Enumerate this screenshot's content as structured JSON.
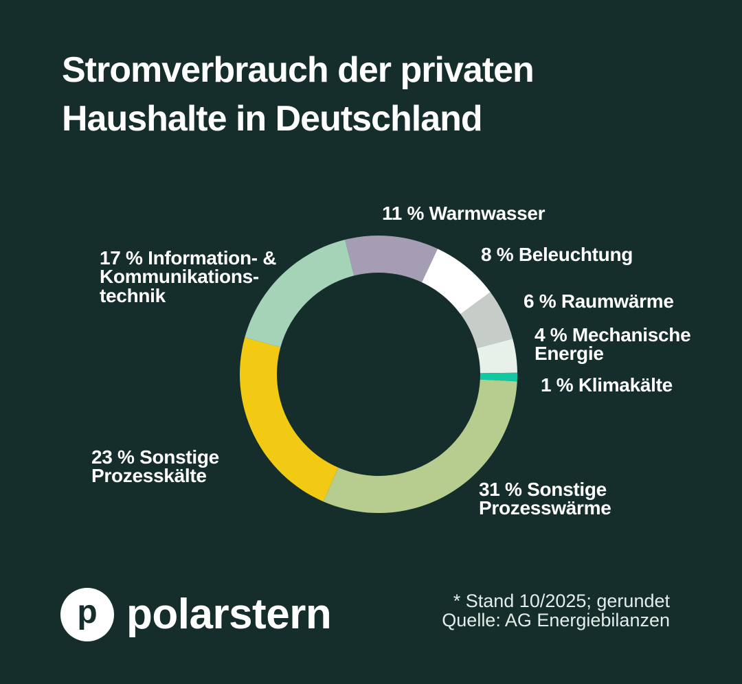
{
  "colors": {
    "background": "#152e2b",
    "text": "#ffffff",
    "footnote_text": "#e4edea"
  },
  "header": {
    "title": "Stromverbrauch der privaten\nHaushalte in Deutschland"
  },
  "chart_data": {
    "type": "pie",
    "variant": "donut",
    "title": "Stromverbrauch der privaten Haushalte in Deutschland",
    "unit": "%",
    "start_angle_deg": -14,
    "direction": "clockwise",
    "labels_position": "around",
    "segments": [
      {
        "slug": "warmwasser",
        "label": "Warmwasser",
        "value": 11,
        "color": "#a59db3",
        "display_label": "11 % Warmwasser"
      },
      {
        "slug": "beleuchtung",
        "label": "Beleuchtung",
        "value": 8,
        "color": "#ffffff",
        "display_label": "8 % Beleuchtung"
      },
      {
        "slug": "raumwaerme",
        "label": "Raumwärme",
        "value": 6,
        "color": "#c6ccc7",
        "display_label": "6 % Raumwärme"
      },
      {
        "slug": "mechanische-energie",
        "label": "Mechanische Energie",
        "value": 4,
        "color": "#e7f0e9",
        "display_label": "4 % Mechanische\nEnergie"
      },
      {
        "slug": "klimakaelte",
        "label": "Klimakälte",
        "value": 1,
        "color": "#12c8a3",
        "display_label": "1 % Klimakälte"
      },
      {
        "slug": "sonstige-prozesswaerme",
        "label": "Sonstige Prozesswärme",
        "value": 31,
        "color": "#b6cd8f",
        "display_label": "31 % Sonstige\nProzesswärme"
      },
      {
        "slug": "sonstige-prozesskaelte",
        "label": "Sonstige Prozesskälte",
        "value": 23,
        "color": "#f2ca14",
        "display_label": "23 % Sonstige\nProzesskälte"
      },
      {
        "slug": "information-kommunikationstechnik",
        "label": "Information- & Kommunikationstechnik",
        "value": 17,
        "color": "#a4d3b8",
        "display_label": "17 % Information- &\nKommunikations-\ntechnik"
      }
    ]
  },
  "footer": {
    "brand": "polarstern",
    "logo_letter": "p",
    "note_line1": "* Stand 10/2025; gerundet",
    "note_line2": "Quelle: AG Energiebilanzen"
  }
}
